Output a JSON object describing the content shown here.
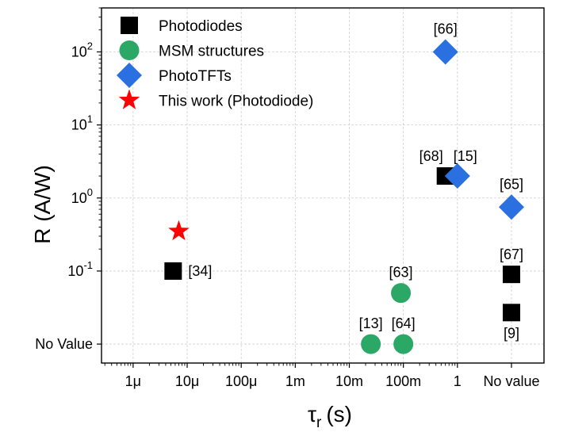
{
  "chart_data": {
    "type": "scatter",
    "xlabel": "τ",
    "xlabel_sub": "r",
    "xlabel_unit": "(s)",
    "ylabel": "R (A/W)",
    "x_scale": "log",
    "y_scale": "log",
    "grid": true,
    "legend_position": "top-left",
    "x_ticks": [
      {
        "value": 1e-06,
        "label": "1μ"
      },
      {
        "value": 1e-05,
        "label": "10μ"
      },
      {
        "value": 0.0001,
        "label": "100μ"
      },
      {
        "value": 0.001,
        "label": "1m"
      },
      {
        "value": 0.01,
        "label": "10m"
      },
      {
        "value": 0.1,
        "label": "100m"
      },
      {
        "value": 1,
        "label": "1"
      },
      {
        "value": 10,
        "label": "No value"
      }
    ],
    "y_ticks": [
      {
        "value": 0.01,
        "label": "No Value",
        "base": "",
        "exp": ""
      },
      {
        "value": 0.1,
        "label": "10^-1",
        "base": "10",
        "exp": "-1"
      },
      {
        "value": 1,
        "label": "10^0",
        "base": "10",
        "exp": "0"
      },
      {
        "value": 10,
        "label": "10^1",
        "base": "10",
        "exp": "1"
      },
      {
        "value": 100,
        "label": "10^2",
        "base": "10",
        "exp": "2"
      }
    ],
    "xlim": [
      2.6e-07,
      40
    ],
    "ylim": [
      0.0055,
      400
    ],
    "series": [
      {
        "name": "Photodiodes",
        "marker": "square",
        "color": "#000000",
        "points": [
          {
            "x": 5.5e-06,
            "y": 0.1,
            "label": "[34]"
          },
          {
            "x": 0.6,
            "y": 2,
            "label": "[68]"
          },
          {
            "x": 10,
            "y": 0.09,
            "label": "[67]"
          },
          {
            "x": 10,
            "y": 0.027,
            "label": "[9]"
          }
        ]
      },
      {
        "name": "MSM structures",
        "marker": "circle",
        "color": "#2ca866",
        "points": [
          {
            "x": 0.025,
            "y": 0.01,
            "label": "[13]"
          },
          {
            "x": 0.09,
            "y": 0.05,
            "label": "[63]"
          },
          {
            "x": 0.1,
            "y": 0.01,
            "label": "[64]"
          }
        ]
      },
      {
        "name": "PhotoTFTs",
        "marker": "diamond",
        "color": "#2b70e0",
        "points": [
          {
            "x": 0.6,
            "y": 100,
            "label": "[66]"
          },
          {
            "x": 1,
            "y": 2,
            "label": "[15]"
          },
          {
            "x": 10,
            "y": 0.75,
            "label": "[65]"
          }
        ]
      },
      {
        "name": "This work (Photodiode)",
        "marker": "star",
        "color": "#ff0000",
        "points": [
          {
            "x": 7e-06,
            "y": 0.35,
            "label": ""
          }
        ]
      }
    ]
  }
}
